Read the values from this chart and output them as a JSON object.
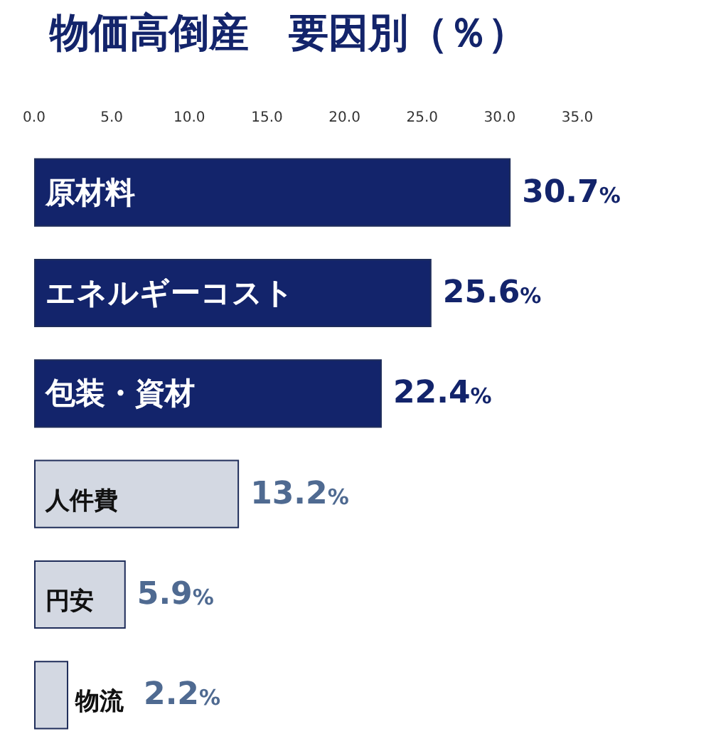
{
  "chart_data": {
    "type": "bar",
    "orientation": "horizontal",
    "title": "物価高倒産　要因別（％）",
    "categories": [
      "原材料",
      "エネルギーコスト",
      "包装・資材",
      "人件費",
      "円安",
      "物流"
    ],
    "values": [
      30.7,
      25.6,
      22.4,
      13.2,
      5.9,
      2.2
    ],
    "colors": [
      "#13246b",
      "#13246b",
      "#13246b",
      "#d3d8e2",
      "#d3d8e2",
      "#d3d8e2"
    ],
    "value_labels": [
      "30.7%",
      "25.6%",
      "22.4%",
      "13.2%",
      "5.9%",
      "2.2%"
    ],
    "xlim": [
      0,
      35
    ],
    "xticks": [
      {
        "value": 0,
        "label": "0.0"
      },
      {
        "value": 5,
        "label": "5.0"
      },
      {
        "value": 10,
        "label": "10.0"
      },
      {
        "value": 15,
        "label": "15.0"
      },
      {
        "value": 20,
        "label": "20.0"
      },
      {
        "value": 25,
        "label": "25.0"
      },
      {
        "value": 30,
        "label": "30.0"
      },
      {
        "value": 35,
        "label": "35.0"
      }
    ],
    "grid": false
  }
}
